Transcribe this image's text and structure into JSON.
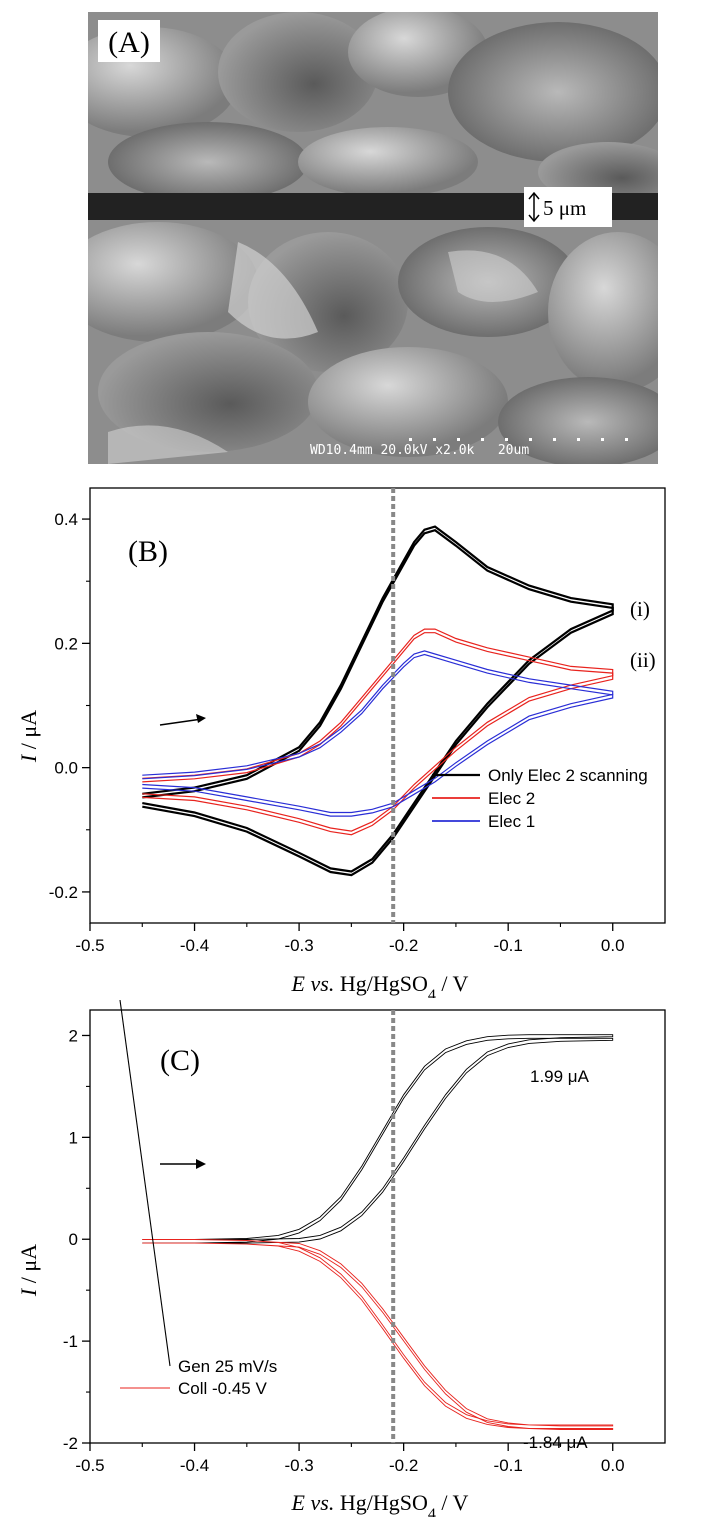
{
  "panel_a": {
    "label": "(A)",
    "scale_bar_text": "5 μm",
    "sem_info": "WD10.4mm 20.0kV x2.0k   20um"
  },
  "chart_data": [
    {
      "type": "line",
      "panel_label": "(B)",
      "xlabel_parts": [
        "E",
        " vs.",
        " Hg/HgSO",
        "4",
        " / V"
      ],
      "ylabel_parts": [
        "I",
        " / μA"
      ],
      "xlim": [
        -0.5,
        0.05
      ],
      "ylim": [
        -0.25,
        0.45
      ],
      "xticks": [
        -0.5,
        -0.4,
        -0.3,
        -0.2,
        -0.1,
        0.0
      ],
      "xtick_labels": [
        "-0.5",
        "-0.4",
        "-0.3",
        "-0.2",
        "-0.1",
        "0.0"
      ],
      "yticks": [
        -0.2,
        0.0,
        0.2,
        0.4
      ],
      "ytick_labels": [
        "-0.2",
        "0.0",
        "0.2",
        "0.4"
      ],
      "vline_x": -0.21,
      "legend_position": "lower-right",
      "annotations": [
        "(i)",
        "(ii)"
      ],
      "series": [
        {
          "name": "Only Elec 2 scanning",
          "color": "#000000",
          "forward": {
            "x": [
              -0.45,
              -0.4,
              -0.35,
              -0.3,
              -0.28,
              -0.26,
              -0.24,
              -0.22,
              -0.2,
              -0.19,
              -0.18,
              -0.17,
              -0.15,
              -0.12,
              -0.08,
              -0.04,
              0.0
            ],
            "y": [
              -0.045,
              -0.035,
              -0.015,
              0.03,
              0.07,
              0.13,
              0.2,
              0.27,
              0.33,
              0.36,
              0.38,
              0.385,
              0.36,
              0.32,
              0.29,
              0.27,
              0.26
            ]
          },
          "reverse": {
            "x": [
              0.0,
              -0.04,
              -0.08,
              -0.12,
              -0.15,
              -0.17,
              -0.19,
              -0.21,
              -0.23,
              -0.25,
              -0.27,
              -0.3,
              -0.35,
              -0.4,
              -0.45
            ],
            "y": [
              0.25,
              0.22,
              0.17,
              0.1,
              0.04,
              -0.01,
              -0.06,
              -0.11,
              -0.15,
              -0.17,
              -0.165,
              -0.14,
              -0.1,
              -0.075,
              -0.06
            ]
          }
        },
        {
          "name": "Elec 2",
          "color": "#e8231e",
          "forward": {
            "x": [
              -0.45,
              -0.4,
              -0.35,
              -0.3,
              -0.28,
              -0.26,
              -0.24,
              -0.22,
              -0.2,
              -0.19,
              -0.18,
              -0.17,
              -0.15,
              -0.12,
              -0.08,
              -0.04,
              0.0
            ],
            "y": [
              -0.02,
              -0.015,
              -0.005,
              0.02,
              0.04,
              0.07,
              0.11,
              0.15,
              0.19,
              0.21,
              0.22,
              0.22,
              0.205,
              0.19,
              0.175,
              0.16,
              0.155
            ]
          },
          "reverse": {
            "x": [
              0.0,
              -0.04,
              -0.08,
              -0.12,
              -0.15,
              -0.17,
              -0.19,
              -0.21,
              -0.23,
              -0.25,
              -0.27,
              -0.3,
              -0.35,
              -0.4,
              -0.45
            ],
            "y": [
              0.145,
              0.13,
              0.11,
              0.07,
              0.03,
              0.0,
              -0.03,
              -0.065,
              -0.09,
              -0.105,
              -0.1,
              -0.085,
              -0.065,
              -0.05,
              -0.045
            ]
          }
        },
        {
          "name": "Elec 1",
          "color": "#2a2ed6",
          "forward": {
            "x": [
              -0.45,
              -0.4,
              -0.35,
              -0.3,
              -0.28,
              -0.26,
              -0.24,
              -0.22,
              -0.2,
              -0.19,
              -0.18,
              -0.17,
              -0.15,
              -0.12,
              -0.08,
              -0.04,
              0.0
            ],
            "y": [
              -0.015,
              -0.01,
              0.0,
              0.02,
              0.035,
              0.06,
              0.09,
              0.13,
              0.165,
              0.18,
              0.185,
              0.18,
              0.17,
              0.155,
              0.14,
              0.13,
              0.12
            ]
          },
          "reverse": {
            "x": [
              0.0,
              -0.04,
              -0.08,
              -0.12,
              -0.15,
              -0.17,
              -0.19,
              -0.21,
              -0.23,
              -0.25,
              -0.27,
              -0.3,
              -0.35,
              -0.4,
              -0.45
            ],
            "y": [
              0.115,
              0.1,
              0.08,
              0.04,
              0.005,
              -0.02,
              -0.04,
              -0.06,
              -0.07,
              -0.075,
              -0.075,
              -0.065,
              -0.05,
              -0.035,
              -0.03
            ]
          }
        }
      ]
    },
    {
      "type": "line",
      "panel_label": "(C)",
      "xlabel_parts": [
        "E",
        " vs.",
        " Hg/HgSO",
        "4",
        " / V"
      ],
      "ylabel_parts": [
        "I",
        " / μA"
      ],
      "xlim": [
        -0.5,
        0.05
      ],
      "ylim": [
        -2.0,
        2.25
      ],
      "xticks": [
        -0.5,
        -0.4,
        -0.3,
        -0.2,
        -0.1,
        0.0
      ],
      "xtick_labels": [
        "-0.5",
        "-0.4",
        "-0.3",
        "-0.2",
        "-0.1",
        "0.0"
      ],
      "yticks": [
        -2,
        -1,
        0,
        1,
        2
      ],
      "ytick_labels": [
        "-2",
        "-1",
        "0",
        "1",
        "2"
      ],
      "vline_x": -0.21,
      "legend_position": "lower-left",
      "annotations": [
        "1.99 μA",
        "-1.84 μA"
      ],
      "series": [
        {
          "name": "Gen 25 mV/s",
          "color": "#000000",
          "forward": {
            "x": [
              -0.45,
              -0.4,
              -0.35,
              -0.32,
              -0.3,
              -0.28,
              -0.26,
              -0.24,
              -0.22,
              -0.2,
              -0.18,
              -0.16,
              -0.14,
              -0.12,
              -0.1,
              -0.08,
              -0.05,
              0.0
            ],
            "y": [
              -0.02,
              -0.02,
              -0.01,
              0.02,
              0.08,
              0.2,
              0.4,
              0.7,
              1.05,
              1.4,
              1.68,
              1.85,
              1.93,
              1.97,
              1.985,
              1.99,
              1.99,
              1.99
            ]
          },
          "reverse": {
            "x": [
              0.0,
              -0.05,
              -0.08,
              -0.1,
              -0.12,
              -0.14,
              -0.16,
              -0.18,
              -0.2,
              -0.22,
              -0.24,
              -0.26,
              -0.28,
              -0.3,
              -0.35,
              -0.4,
              -0.45
            ],
            "y": [
              1.97,
              1.96,
              1.94,
              1.9,
              1.82,
              1.65,
              1.4,
              1.1,
              0.78,
              0.48,
              0.25,
              0.1,
              0.02,
              -0.01,
              -0.02,
              -0.02,
              -0.02
            ]
          }
        },
        {
          "name": "Coll -0.45 V",
          "color": "#e8231e",
          "forward": {
            "x": [
              -0.45,
              -0.4,
              -0.35,
              -0.32,
              -0.3,
              -0.28,
              -0.26,
              -0.24,
              -0.22,
              -0.2,
              -0.18,
              -0.16,
              -0.14,
              -0.12,
              -0.1,
              -0.08,
              -0.05,
              0.0
            ],
            "y": [
              -0.02,
              -0.02,
              -0.03,
              -0.05,
              -0.1,
              -0.2,
              -0.36,
              -0.58,
              -0.86,
              -1.15,
              -1.42,
              -1.62,
              -1.74,
              -1.8,
              -1.83,
              -1.84,
              -1.84,
              -1.84
            ]
          },
          "reverse": {
            "x": [
              0.0,
              -0.05,
              -0.08,
              -0.1,
              -0.12,
              -0.14,
              -0.16,
              -0.18,
              -0.2,
              -0.22,
              -0.24,
              -0.26,
              -0.28,
              -0.3,
              -0.35,
              -0.4,
              -0.45
            ],
            "y": [
              -1.85,
              -1.85,
              -1.84,
              -1.82,
              -1.78,
              -1.68,
              -1.5,
              -1.26,
              -0.98,
              -0.7,
              -0.45,
              -0.26,
              -0.13,
              -0.06,
              -0.03,
              -0.02,
              -0.02
            ]
          }
        }
      ]
    }
  ]
}
